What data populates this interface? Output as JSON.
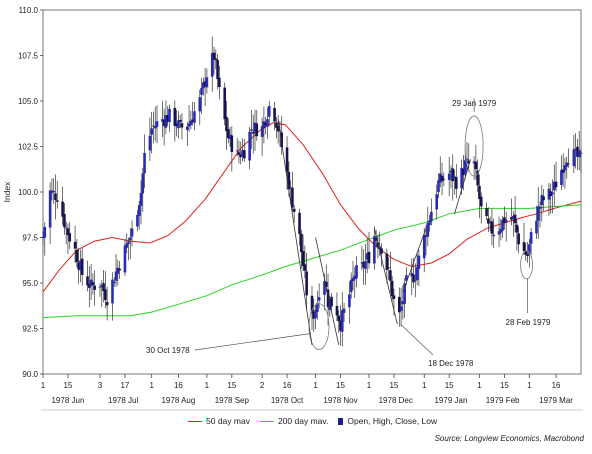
{
  "chart_data": {
    "type": "candlestick",
    "ylabel": "Index",
    "ylim": [
      90,
      110
    ],
    "y_ticks": [
      "90.0",
      "92.5",
      "95.0",
      "97.5",
      "100.0",
      "102.5",
      "105.0",
      "107.5",
      "110.0"
    ],
    "y_tick_values": [
      90,
      92.5,
      95,
      97.5,
      100,
      102.5,
      105,
      107.5,
      110
    ],
    "xlim": [
      "1978-06-01",
      "1979-03-30"
    ],
    "x_ticks": [
      {
        "label": "1",
        "date": "1978-06-01"
      },
      {
        "label": "15",
        "date": "1978-06-15"
      },
      {
        "label": "3",
        "date": "1978-07-03"
      },
      {
        "label": "17",
        "date": "1978-07-17"
      },
      {
        "label": "1",
        "date": "1978-08-01"
      },
      {
        "label": "16",
        "date": "1978-08-16"
      },
      {
        "label": "1",
        "date": "1978-09-01"
      },
      {
        "label": "15",
        "date": "1978-09-15"
      },
      {
        "label": "2",
        "date": "1978-10-02"
      },
      {
        "label": "16",
        "date": "1978-10-16"
      },
      {
        "label": "1",
        "date": "1978-11-01"
      },
      {
        "label": "15",
        "date": "1978-11-15"
      },
      {
        "label": "1",
        "date": "1978-12-01"
      },
      {
        "label": "15",
        "date": "1978-12-15"
      },
      {
        "label": "1",
        "date": "1979-01-01"
      },
      {
        "label": "15",
        "date": "1979-01-15"
      },
      {
        "label": "1",
        "date": "1979-02-01"
      },
      {
        "label": "15",
        "date": "1979-02-15"
      },
      {
        "label": "1",
        "date": "1979-03-01"
      },
      {
        "label": "16",
        "date": "1979-03-16"
      }
    ],
    "month_labels": [
      {
        "label": "1978 Jun",
        "date": "1978-06-15"
      },
      {
        "label": "1978 Jul",
        "date": "1978-07-16"
      },
      {
        "label": "1978 Aug",
        "date": "1978-08-16"
      },
      {
        "label": "1978 Sep",
        "date": "1978-09-15"
      },
      {
        "label": "1978 Oct",
        "date": "1978-10-16"
      },
      {
        "label": "1978 Nov",
        "date": "1978-11-15"
      },
      {
        "label": "1978 Dec",
        "date": "1978-12-16"
      },
      {
        "label": "1979 Jan",
        "date": "1979-01-16"
      },
      {
        "label": "1979 Feb",
        "date": "1979-02-14"
      },
      {
        "label": "1979 Mar",
        "date": "1979-03-16"
      }
    ],
    "price_path": [
      [
        "1978-06-01",
        97.5
      ],
      [
        "1978-06-05",
        100.0
      ],
      [
        "1978-06-09",
        99.8
      ],
      [
        "1978-06-14",
        98.0
      ],
      [
        "1978-06-19",
        96.8
      ],
      [
        "1978-06-23",
        95.5
      ],
      [
        "1978-06-28",
        94.8
      ],
      [
        "1978-07-03",
        95.0
      ],
      [
        "1978-07-07",
        94.2
      ],
      [
        "1978-07-12",
        95.6
      ],
      [
        "1978-07-17",
        96.8
      ],
      [
        "1978-07-21",
        97.8
      ],
      [
        "1978-07-26",
        100.0
      ],
      [
        "1978-07-28",
        102.0
      ],
      [
        "1978-08-01",
        103.5
      ],
      [
        "1978-08-07",
        104.0
      ],
      [
        "1978-08-12",
        104.2
      ],
      [
        "1978-08-17",
        103.5
      ],
      [
        "1978-08-22",
        103.8
      ],
      [
        "1978-08-28",
        105.0
      ],
      [
        "1978-09-01",
        106.5
      ],
      [
        "1978-09-05",
        107.5
      ],
      [
        "1978-09-09",
        104.8
      ],
      [
        "1978-09-13",
        103.0
      ],
      [
        "1978-09-18",
        102.0
      ],
      [
        "1978-09-22",
        102.3
      ],
      [
        "1978-09-26",
        103.5
      ],
      [
        "1978-10-02",
        103.5
      ],
      [
        "1978-10-07",
        105.0
      ],
      [
        "1978-10-11",
        103.5
      ],
      [
        "1978-10-17",
        100.5
      ],
      [
        "1978-10-23",
        97.5
      ],
      [
        "1978-10-27",
        94.5
      ],
      [
        "1978-10-30",
        93.0
      ],
      [
        "1978-11-02",
        94.0
      ],
      [
        "1978-11-05",
        96.0
      ],
      [
        "1978-11-08",
        94.0
      ],
      [
        "1978-11-12",
        93.8
      ],
      [
        "1978-11-15",
        92.8
      ],
      [
        "1978-11-19",
        94.0
      ],
      [
        "1978-11-23",
        95.5
      ],
      [
        "1978-11-27",
        95.8
      ],
      [
        "1978-12-01",
        96.5
      ],
      [
        "1978-12-04",
        97.6
      ],
      [
        "1978-12-08",
        97.0
      ],
      [
        "1978-12-12",
        95.5
      ],
      [
        "1978-12-16",
        93.5
      ],
      [
        "1978-12-18",
        93.2
      ],
      [
        "1978-12-22",
        95.0
      ],
      [
        "1978-12-27",
        95.5
      ],
      [
        "1979-01-01",
        97.5
      ],
      [
        "1979-01-05",
        99.0
      ],
      [
        "1979-01-09",
        100.5
      ],
      [
        "1979-01-15",
        101.0
      ],
      [
        "1979-01-20",
        100.5
      ],
      [
        "1979-01-24",
        101.5
      ],
      [
        "1979-01-29",
        101.5
      ],
      [
        "1979-02-02",
        99.0
      ],
      [
        "1979-02-06",
        98.0
      ],
      [
        "1979-02-10",
        97.8
      ],
      [
        "1979-02-15",
        98.5
      ],
      [
        "1979-02-20",
        98.5
      ],
      [
        "1979-02-24",
        97.0
      ],
      [
        "1979-02-28",
        96.5
      ],
      [
        "1979-03-04",
        98.5
      ],
      [
        "1979-03-08",
        99.5
      ],
      [
        "1979-03-14",
        100.0
      ],
      [
        "1979-03-18",
        101.0
      ],
      [
        "1979-03-22",
        102.0
      ],
      [
        "1979-03-26",
        102.0
      ],
      [
        "1979-03-30",
        101.8
      ]
    ],
    "series": [
      {
        "name": "50 day mav",
        "color": "#e0211d",
        "points": [
          [
            "1978-06-01",
            94.5
          ],
          [
            "1978-06-10",
            95.7
          ],
          [
            "1978-06-20",
            96.8
          ],
          [
            "1978-06-30",
            97.3
          ],
          [
            "1978-07-10",
            97.5
          ],
          [
            "1978-07-20",
            97.3
          ],
          [
            "1978-07-31",
            97.2
          ],
          [
            "1978-08-10",
            97.6
          ],
          [
            "1978-08-20",
            98.4
          ],
          [
            "1978-08-31",
            99.6
          ],
          [
            "1978-09-10",
            101.0
          ],
          [
            "1978-09-20",
            102.4
          ],
          [
            "1978-10-01",
            103.4
          ],
          [
            "1978-10-08",
            103.8
          ],
          [
            "1978-10-15",
            103.7
          ],
          [
            "1978-10-25",
            102.6
          ],
          [
            "1978-11-05",
            101.0
          ],
          [
            "1978-11-15",
            99.3
          ],
          [
            "1978-11-25",
            98.0
          ],
          [
            "1978-12-05",
            97.0
          ],
          [
            "1978-12-15",
            96.3
          ],
          [
            "1978-12-25",
            95.9
          ],
          [
            "1979-01-05",
            96.1
          ],
          [
            "1979-01-15",
            96.6
          ],
          [
            "1979-01-25",
            97.4
          ],
          [
            "1979-02-05",
            98.0
          ],
          [
            "1979-02-15",
            98.3
          ],
          [
            "1979-02-25",
            98.6
          ],
          [
            "1979-03-05",
            98.8
          ],
          [
            "1979-03-15",
            99.1
          ],
          [
            "1979-03-30",
            99.5
          ]
        ]
      },
      {
        "name": "200 day mav.",
        "color": "#2bd41e",
        "points": [
          [
            "1978-06-01",
            93.1
          ],
          [
            "1978-06-20",
            93.2
          ],
          [
            "1978-07-10",
            93.2
          ],
          [
            "1978-07-20",
            93.2
          ],
          [
            "1978-08-01",
            93.4
          ],
          [
            "1978-08-15",
            93.8
          ],
          [
            "1978-09-01",
            94.3
          ],
          [
            "1978-09-15",
            94.9
          ],
          [
            "1978-10-01",
            95.4
          ],
          [
            "1978-10-15",
            95.9
          ],
          [
            "1978-11-01",
            96.4
          ],
          [
            "1978-11-15",
            96.8
          ],
          [
            "1978-12-01",
            97.4
          ],
          [
            "1978-12-15",
            97.9
          ],
          [
            "1979-01-01",
            98.3
          ],
          [
            "1979-01-15",
            98.8
          ],
          [
            "1979-02-01",
            99.1
          ],
          [
            "1979-02-15",
            99.1
          ],
          [
            "1979-03-01",
            99.1
          ],
          [
            "1979-03-15",
            99.2
          ],
          [
            "1979-03-30",
            99.3
          ]
        ]
      }
    ],
    "ohlc_name": "Open, High, Close, Low",
    "ohlc_color": "#1f1f8a",
    "annotations": [
      {
        "text": "30 Oct 1978",
        "date": "1978-10-30",
        "value": 92.0
      },
      {
        "text": "18 Dec 1978",
        "date": "1978-12-18",
        "value": 92.8
      },
      {
        "text": "29 Jan 1979",
        "date": "1979-01-29",
        "value": 102.5
      },
      {
        "text": "28 Feb 1979",
        "date": "1979-02-28",
        "value": 96.0
      }
    ],
    "grid": false,
    "legend": "bottom",
    "source": "Source: Longview Economics, Macrobond"
  }
}
